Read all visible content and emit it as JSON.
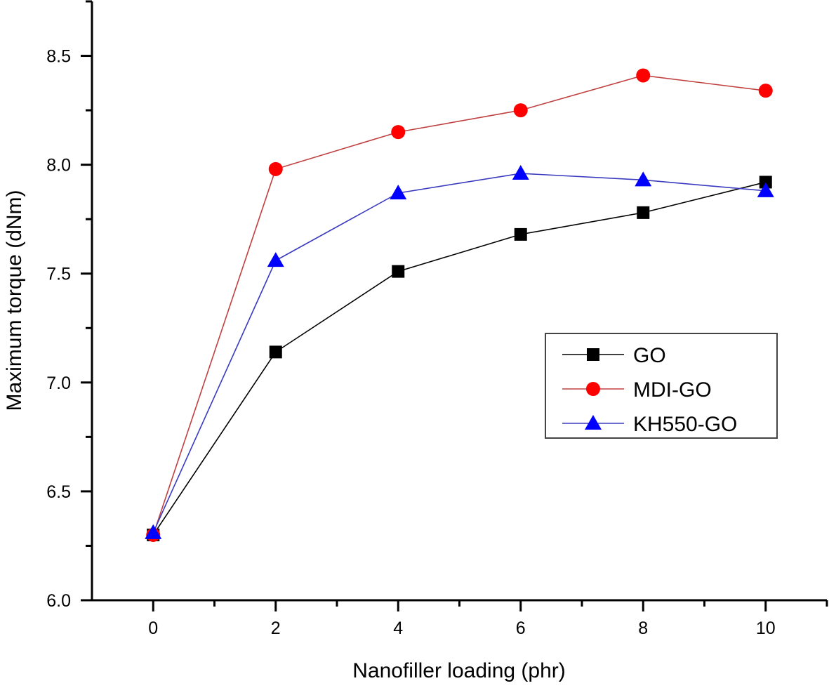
{
  "chart_data": {
    "type": "line",
    "title": "",
    "xlabel": "Nanofiller loading (phr)",
    "ylabel": "Maximum torque (dNm)",
    "x": [
      0,
      2,
      4,
      6,
      8,
      10
    ],
    "xlim": [
      -1,
      11
    ],
    "ylim": [
      6.0,
      8.75
    ],
    "xticks": [
      0,
      2,
      4,
      6,
      8,
      10
    ],
    "xtick_labels": [
      "0",
      "2",
      "4",
      "6",
      "8",
      "10"
    ],
    "xminor_ticks": [
      1,
      3,
      5,
      7,
      9,
      11
    ],
    "yticks": [
      6.0,
      6.5,
      7.0,
      7.5,
      8.0,
      8.5
    ],
    "ytick_labels": [
      "6.0",
      "6.5",
      "7.0",
      "7.5",
      "8.0",
      "8.5"
    ],
    "yminor_ticks": [
      6.25,
      6.75,
      7.25,
      7.75,
      8.25,
      8.75
    ],
    "grid": false,
    "legend_position": "center-right",
    "series": [
      {
        "name": "GO",
        "color": "#000000",
        "marker": "square",
        "values": [
          6.3,
          7.14,
          7.51,
          7.68,
          7.78,
          7.92
        ]
      },
      {
        "name": "MDI-GO",
        "color": "#ff0000",
        "line_color": "#c04040",
        "marker": "circle",
        "values": [
          6.3,
          7.98,
          8.15,
          8.25,
          8.41,
          8.34
        ]
      },
      {
        "name": "KH550-GO",
        "color": "#0000ff",
        "line_color": "#3a3ac0",
        "marker": "triangle",
        "values": [
          6.31,
          7.56,
          7.87,
          7.96,
          7.93,
          7.88
        ]
      }
    ]
  }
}
